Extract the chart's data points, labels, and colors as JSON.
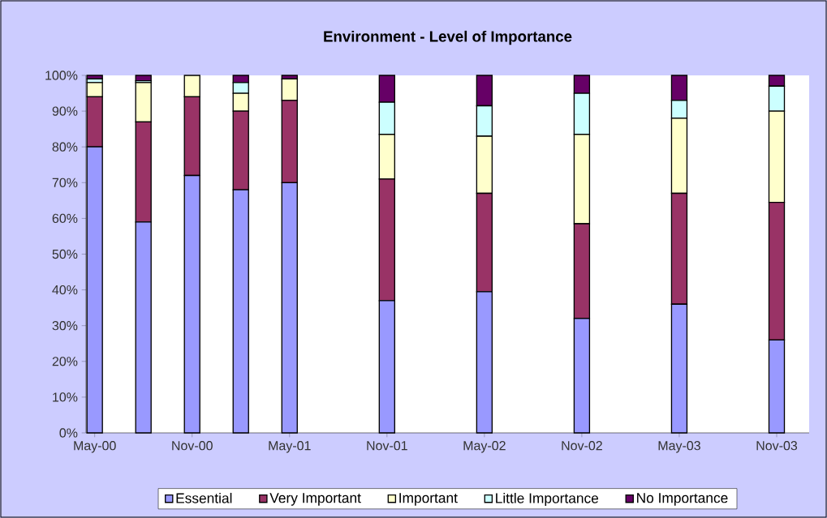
{
  "chart_data": {
    "type": "bar",
    "stacked": true,
    "title": "Environment - Level of Importance",
    "x": [
      "2000-05",
      "2000-08",
      "2000-11",
      "2001-02",
      "2001-05",
      "2001-11",
      "2002-05",
      "2002-11",
      "2003-05",
      "2003-11"
    ],
    "series": [
      {
        "name": "Essential",
        "color": "#9999ff",
        "values": [
          80,
          59,
          72,
          68,
          70,
          37,
          39.5,
          32,
          36,
          26
        ]
      },
      {
        "name": "Very Important",
        "color": "#993366",
        "values": [
          14,
          28,
          22,
          22,
          23,
          34,
          27.5,
          26.5,
          31,
          38.5
        ]
      },
      {
        "name": "Important",
        "color": "#ffffcc",
        "values": [
          4,
          11,
          6,
          5,
          6,
          12.5,
          16,
          25,
          21,
          25.5
        ]
      },
      {
        "name": "Little Importance",
        "color": "#ccffff",
        "values": [
          1,
          0.5,
          0,
          3,
          0,
          9,
          8.5,
          11.5,
          5,
          7
        ]
      },
      {
        "name": "No Importance",
        "color": "#660066",
        "values": [
          1,
          1.5,
          0,
          2,
          1,
          7.5,
          8.5,
          5,
          7,
          3
        ]
      }
    ],
    "xlim": [
      "2000-04-15",
      "2004-01-01"
    ],
    "xticks": [
      {
        "value": "2000-05",
        "label": "May-00"
      },
      {
        "value": "2000-11",
        "label": "Nov-00"
      },
      {
        "value": "2001-05",
        "label": "May-01"
      },
      {
        "value": "2001-11",
        "label": "Nov-01"
      },
      {
        "value": "2002-05",
        "label": "May-02"
      },
      {
        "value": "2002-11",
        "label": "Nov-02"
      },
      {
        "value": "2003-05",
        "label": "May-03"
      },
      {
        "value": "2003-11",
        "label": "Nov-03"
      }
    ],
    "ylim": [
      0,
      100
    ],
    "yticks": [
      {
        "value": 0,
        "label": "0%"
      },
      {
        "value": 10,
        "label": "10%"
      },
      {
        "value": 20,
        "label": "20%"
      },
      {
        "value": 30,
        "label": "30%"
      },
      {
        "value": 40,
        "label": "40%"
      },
      {
        "value": 50,
        "label": "50%"
      },
      {
        "value": 60,
        "label": "60%"
      },
      {
        "value": 70,
        "label": "70%"
      },
      {
        "value": 80,
        "label": "80%"
      },
      {
        "value": 90,
        "label": "90%"
      },
      {
        "value": 100,
        "label": "100%"
      }
    ],
    "grid": false,
    "legend": "bottom"
  }
}
